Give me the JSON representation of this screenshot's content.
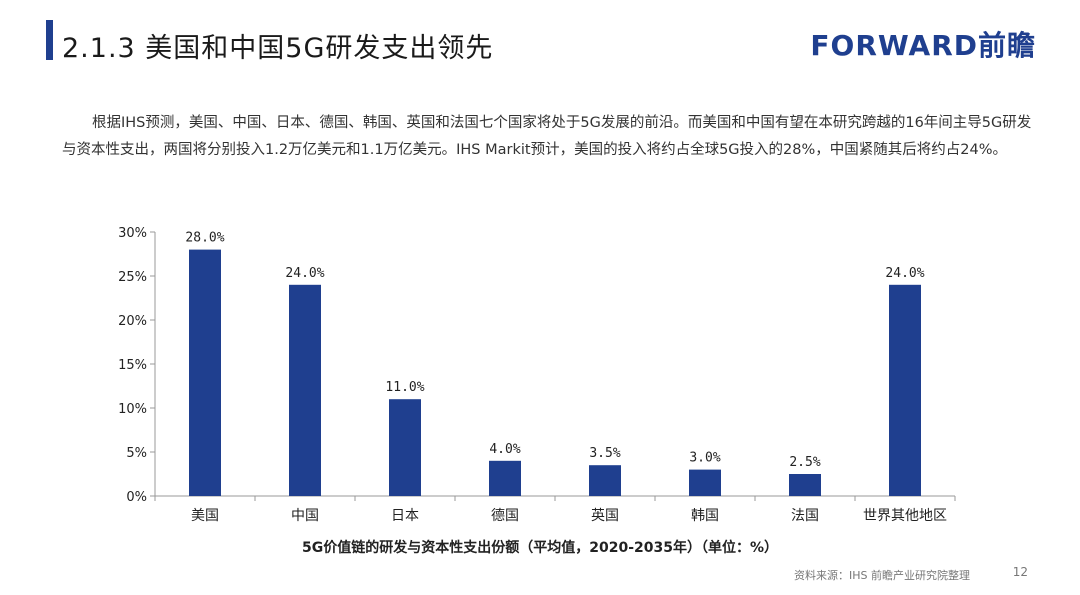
{
  "header": {
    "title": "2.1.3 美国和中国5G研发支出领先",
    "brand": "FORWARD前瞻"
  },
  "intro": "根据IHS预测，美国、中国、日本、德国、韩国、英国和法国七个国家将处于5G发展的前沿。而美国和中国有望在本研究跨越的16年间主导5G研发与资本性支出，两国将分别投入1.2万亿美元和1.1万亿美元。IHS Markit预计，美国的投入将约占全球5G投入的28%，中国紧随其后将约占24%。",
  "chart_data": {
    "type": "bar",
    "categories": [
      "美国",
      "中国",
      "日本",
      "德国",
      "英国",
      "韩国",
      "法国",
      "世界其他地区"
    ],
    "values": [
      28.0,
      24.0,
      11.0,
      4.0,
      3.5,
      3.0,
      2.5,
      24.0
    ],
    "value_labels": [
      "28.0%",
      "24.0%",
      "11.0%",
      "4.0%",
      "3.5%",
      "3.0%",
      "2.5%",
      "24.0%"
    ],
    "ylim": [
      0,
      30
    ],
    "yticks": [
      0,
      5,
      10,
      15,
      20,
      25,
      30
    ],
    "ytick_labels": [
      "0%",
      "5%",
      "10%",
      "15%",
      "20%",
      "25%",
      "30%"
    ],
    "xlabel": "5G价值链的研发与资本性支出份额（平均值，2020-2035年）（单位：%）",
    "ylabel": "",
    "grid": false,
    "bar_color": "#1f3f8f"
  },
  "footer": {
    "source": "资料来源：IHS 前瞻产业研究院整理",
    "page_number": "12"
  }
}
